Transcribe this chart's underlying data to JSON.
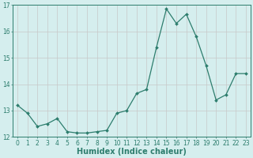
{
  "x": [
    0,
    1,
    2,
    3,
    4,
    5,
    6,
    7,
    8,
    9,
    10,
    11,
    12,
    13,
    14,
    15,
    16,
    17,
    18,
    19,
    20,
    21,
    22,
    23
  ],
  "y": [
    13.2,
    12.9,
    12.4,
    12.5,
    12.7,
    12.2,
    12.15,
    12.15,
    12.2,
    12.25,
    12.9,
    13.0,
    13.65,
    13.8,
    15.4,
    16.85,
    16.3,
    16.65,
    15.8,
    14.7,
    13.4,
    13.6,
    14.4,
    14.4
  ],
  "xlabel": "Humidex (Indice chaleur)",
  "ylim": [
    12,
    17
  ],
  "xlim_min": -0.5,
  "xlim_max": 23.5,
  "yticks": [
    12,
    13,
    14,
    15,
    16,
    17
  ],
  "xticks": [
    0,
    1,
    2,
    3,
    4,
    5,
    6,
    7,
    8,
    9,
    10,
    11,
    12,
    13,
    14,
    15,
    16,
    17,
    18,
    19,
    20,
    21,
    22,
    23
  ],
  "line_color": "#2d7d6d",
  "marker": "D",
  "marker_size": 2.0,
  "line_width": 0.9,
  "bg_color": "#d5eeee",
  "grid_color": "#c8c8c8",
  "axis_color": "#2d7d6d",
  "tick_label_fontsize": 5.5,
  "xlabel_fontsize": 7.0
}
